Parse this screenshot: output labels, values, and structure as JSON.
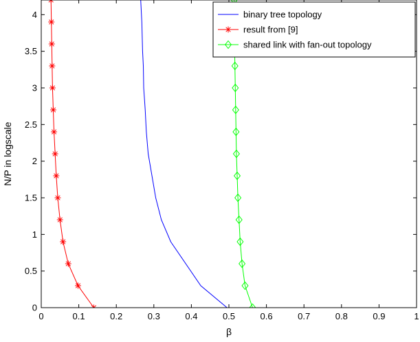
{
  "chart_data": {
    "type": "line",
    "xlabel": "β",
    "ylabel": "N/P in logscale",
    "xlim": [
      0,
      1
    ],
    "ylim": [
      0,
      4.2
    ],
    "xticks": [
      "0",
      "0.1",
      "0.2",
      "0.3",
      "0.4",
      "0.5",
      "0.6",
      "0.7",
      "0.8",
      "0.9",
      "1"
    ],
    "yticks": [
      "0",
      "0.5",
      "1",
      "1.5",
      "2",
      "2.5",
      "3",
      "3.5",
      "4"
    ],
    "grid": false,
    "legend_position": "top-right",
    "series": [
      {
        "name": "binary tree topology",
        "color": "#0000ff",
        "marker": "none",
        "x": [
          0.495,
          0.425,
          0.345,
          0.32,
          0.305,
          0.295,
          0.285,
          0.28,
          0.277,
          0.273,
          0.272,
          0.27,
          0.269,
          0.268,
          0.267,
          0.266,
          0.265
        ],
        "y": [
          0,
          0.3,
          0.9,
          1.2,
          1.5,
          1.8,
          2.1,
          2.4,
          2.7,
          3.0,
          3.3,
          3.5,
          3.7,
          3.9,
          4.0,
          4.1,
          4.2
        ]
      },
      {
        "name": "result from [9]",
        "color": "#ff0000",
        "marker": "star",
        "x": [
          0.14,
          0.098,
          0.072,
          0.058,
          0.05,
          0.044,
          0.04,
          0.037,
          0.034,
          0.032,
          0.03,
          0.029,
          0.028,
          0.027,
          0.026
        ],
        "y": [
          0,
          0.3,
          0.6,
          0.9,
          1.2,
          1.5,
          1.8,
          2.1,
          2.4,
          2.7,
          3.0,
          3.3,
          3.6,
          3.9,
          4.2
        ]
      },
      {
        "name": "shared link with fan-out topology",
        "color": "#00ff00",
        "marker": "diamond",
        "x": [
          0.563,
          0.543,
          0.535,
          0.53,
          0.527,
          0.524,
          0.522,
          0.52,
          0.519,
          0.518,
          0.517,
          0.516,
          0.515,
          0.515,
          0.514
        ],
        "y": [
          0,
          0.3,
          0.6,
          0.9,
          1.2,
          1.5,
          1.8,
          2.1,
          2.4,
          2.7,
          3.0,
          3.3,
          3.6,
          3.9,
          4.2
        ]
      }
    ]
  }
}
